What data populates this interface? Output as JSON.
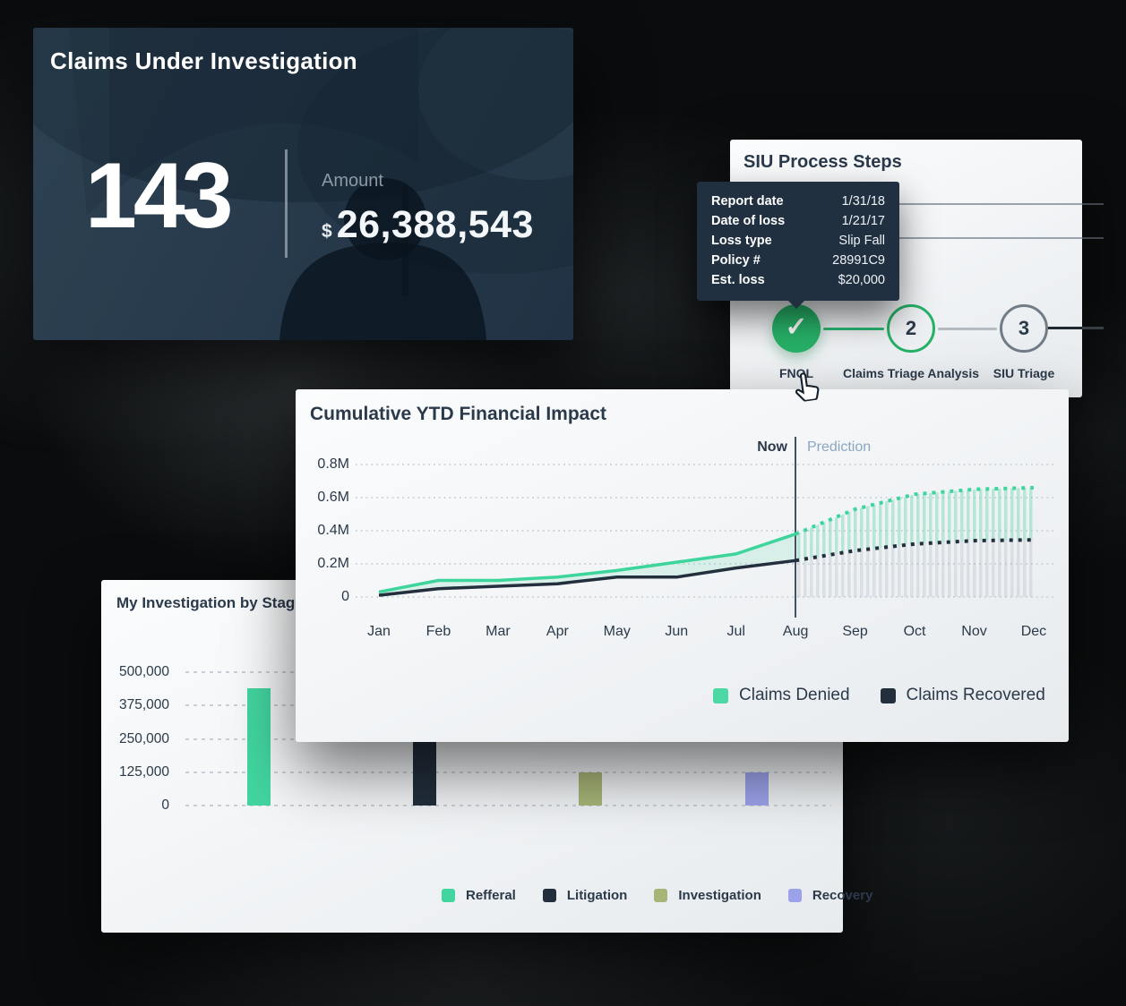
{
  "claims_card": {
    "title": "Claims Under Investigation",
    "count": "143",
    "amount_label": "Amount",
    "currency": "$",
    "amount_value": "26,388,543"
  },
  "siu_card": {
    "title": "SIU Process Steps",
    "tooltip": {
      "rows": [
        {
          "label": "Report date",
          "value": "1/31/18"
        },
        {
          "label": "Date of loss",
          "value": "1/21/17"
        },
        {
          "label": "Loss type",
          "value": "Slip Fall"
        },
        {
          "label": "Policy #",
          "value": "28991C9"
        },
        {
          "label": "Est. loss",
          "value": "$20,000"
        }
      ]
    },
    "steps": [
      {
        "label": "FNOL",
        "state": "done",
        "icon": "check-icon"
      },
      {
        "label": "Claims Triage Analysis",
        "number": "2",
        "state": "active"
      },
      {
        "label": "SIU Triage",
        "number": "3",
        "state": "upcoming"
      }
    ]
  },
  "colors": {
    "green": "#3ed59d",
    "dark_navy": "#232f3d",
    "olive": "#a7b577",
    "purple": "#9ca2ea",
    "legend_green": "#4bd8a4"
  },
  "chart_data": [
    {
      "type": "line",
      "title": "Cumulative YTD Financial Impact",
      "categories": [
        "Jan",
        "Feb",
        "Mar",
        "Apr",
        "May",
        "Jun",
        "Jul",
        "Aug",
        "Sep",
        "Oct",
        "Nov",
        "Dec"
      ],
      "ytick_labels": [
        "0",
        "0.2M",
        "0.4M",
        "0.6M",
        "0.8M"
      ],
      "ytick_values": [
        0,
        0.2,
        0.4,
        0.6,
        0.8
      ],
      "ylim": [
        0,
        0.9
      ],
      "grid": "dotted-horizontal",
      "now_index": 7,
      "now_label": "Now",
      "prediction_label": "Prediction",
      "legend_position": "bottom-right",
      "series": [
        {
          "name": "Claims Denied",
          "color": "#3ed59d",
          "legend_color": "#4bd8a4",
          "values": [
            0.03,
            0.1,
            0.1,
            0.12,
            0.16,
            0.21,
            0.26,
            0.38
          ],
          "prediction": [
            0.38,
            0.53,
            0.62,
            0.65,
            0.66
          ]
        },
        {
          "name": "Claims Recovered",
          "color": "#232f3d",
          "legend_color": "#232f3d",
          "values": [
            0.01,
            0.05,
            0.065,
            0.08,
            0.12,
            0.12,
            0.175,
            0.22
          ],
          "prediction": [
            0.22,
            0.28,
            0.32,
            0.34,
            0.345
          ]
        }
      ]
    },
    {
      "type": "bar",
      "title": "My Investigation by Stage",
      "categories": [
        "Refferal",
        "Litigation",
        "Investigation",
        "Recovery"
      ],
      "values": [
        440000,
        240000,
        125000,
        125000
      ],
      "colors": [
        "#42d5a0",
        "#222e3c",
        "#a7b577",
        "#9ca2ea"
      ],
      "ytick_labels": [
        "0",
        "125,000",
        "250,000",
        "375,000",
        "500,000"
      ],
      "ytick_values": [
        0,
        125000,
        250000,
        375000,
        500000
      ],
      "ylim": [
        0,
        500000
      ],
      "grid": "dashed-horizontal",
      "legend_position": "bottom"
    }
  ]
}
